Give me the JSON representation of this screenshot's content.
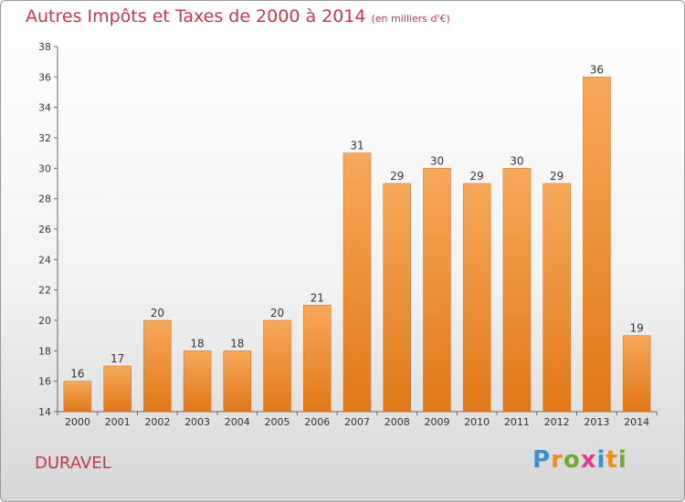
{
  "title": "Autres Impôts et Taxes de 2000 à 2014",
  "unit_label": "(en milliers d'€)",
  "place": "DURAVEL",
  "logo": {
    "letters": [
      "P",
      "r",
      "o",
      "x",
      "i",
      "t",
      "i"
    ],
    "colors": [
      "#3a8fd0",
      "#f08a1c",
      "#6aae2f",
      "#e63a8a",
      "#3a8fd0",
      "#f08a1c",
      "#6aae2f"
    ]
  },
  "colors": {
    "title": "#c0394f",
    "bar_top": "#f7a85a",
    "bar_bottom": "#e07818",
    "axis": "#666666"
  },
  "chart_data": {
    "type": "bar",
    "categories": [
      "2000",
      "2001",
      "2002",
      "2003",
      "2004",
      "2005",
      "2006",
      "2007",
      "2008",
      "2009",
      "2010",
      "2011",
      "2012",
      "2013",
      "2014"
    ],
    "values": [
      16,
      17,
      20,
      18,
      18,
      20,
      21,
      31,
      29,
      30,
      29,
      30,
      29,
      36,
      19
    ],
    "ylim": [
      14,
      38
    ],
    "yticks": [
      14,
      16,
      18,
      20,
      22,
      24,
      26,
      28,
      30,
      32,
      34,
      36,
      38
    ],
    "grid": false,
    "data_labels": true
  }
}
